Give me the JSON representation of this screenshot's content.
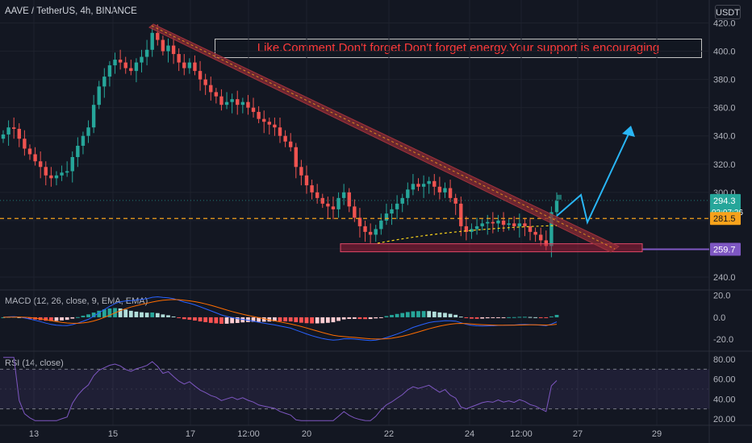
{
  "header": {
    "title": "AAVE / TetherUS, 4h, BINANCE",
    "currency": "USDT"
  },
  "annotation": {
    "banner_text": "Like.Comment.Don't forget.Don't forget energy.Your support is encouraging"
  },
  "colors": {
    "background": "#131722",
    "bull": "#26a69a",
    "bear": "#ef5350",
    "trendline": "#8b2c35",
    "arrow": "#29b6f6",
    "support": "#b71c3c",
    "level_line": "#f7a21b",
    "macd_line": "#2962ff",
    "signal_line": "#ff6d00",
    "rsi_line": "#7e57c2"
  },
  "chart_data": [
    {
      "type": "candlestick",
      "title": "AAVE / TetherUS, 4h, BINANCE",
      "x_ticks": [
        "13",
        "15",
        "17",
        "12:00",
        "20",
        "22",
        "24",
        "12:00",
        "27",
        "29"
      ],
      "y_ticks": [
        "420.0",
        "400.0",
        "380.0",
        "360.0",
        "340.0",
        "320.0",
        "300.0",
        "240.0"
      ],
      "ylim": [
        232,
        426
      ],
      "price_labels": {
        "last_price": "294.3",
        "countdown": "02:07:26",
        "dashed_level": "281.5",
        "support_level": "259.7"
      },
      "closes": [
        341,
        346,
        345,
        338,
        331,
        327,
        322,
        318,
        312,
        310,
        312,
        314,
        315,
        325,
        333,
        340,
        346,
        362,
        375,
        382,
        390,
        394,
        392,
        388,
        386,
        392,
        396,
        401,
        413,
        408,
        400,
        404,
        398,
        392,
        388,
        392,
        386,
        380,
        376,
        371,
        368,
        362,
        364,
        366,
        362,
        364,
        360,
        357,
        352,
        350,
        348,
        346,
        340,
        336,
        332,
        318,
        312,
        305,
        300,
        296,
        292,
        290,
        288,
        296,
        300,
        290,
        282,
        276,
        272,
        270,
        274,
        280,
        285,
        288,
        292,
        296,
        302,
        306,
        304,
        306,
        308,
        304,
        300,
        303,
        296,
        292,
        276,
        272,
        274,
        276,
        278,
        279,
        278,
        280,
        277,
        278,
        276,
        278,
        276,
        272,
        270,
        266,
        262,
        286,
        294
      ],
      "macd": {
        "ylim": [
          -28,
          22
        ],
        "y_ticks": [
          "20.0",
          "0.0",
          "-20.0"
        ]
      },
      "rsi": {
        "ylim": [
          15,
          85
        ],
        "y_ticks": [
          "80.00",
          "60.00",
          "40.00",
          "20.00"
        ],
        "bands": [
          70,
          30
        ]
      }
    },
    {
      "type": "line",
      "title": "MACD (12, 26, close, 9, EMA, EMA)",
      "series": [
        {
          "name": "MACD"
        },
        {
          "name": "Signal"
        },
        {
          "name": "Histogram"
        }
      ]
    },
    {
      "type": "line",
      "title": "RSI (14, close)",
      "series": [
        {
          "name": "RSI"
        }
      ]
    }
  ]
}
